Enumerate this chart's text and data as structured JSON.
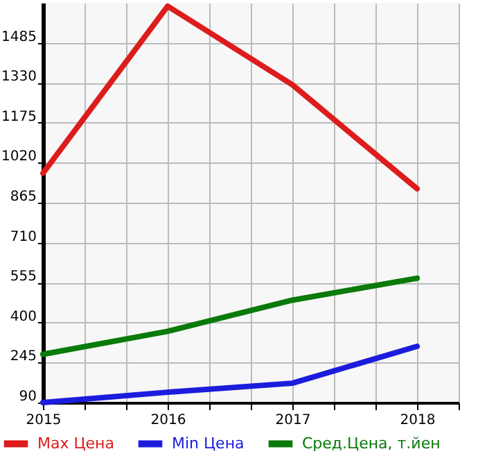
{
  "chart_data": {
    "type": "line",
    "x": [
      2015,
      2016,
      2017,
      2018
    ],
    "series": [
      {
        "name": "Max Цена",
        "color": "#dd1c1c",
        "values": [
          979,
          1627,
          1322,
          919
        ]
      },
      {
        "name": "Min Цена",
        "color": "#1c1cdd",
        "values": [
          90,
          130,
          165,
          308
        ]
      },
      {
        "name": "Сред.Цена, т.йен",
        "color": "#0a7a0a",
        "values": [
          277,
          366,
          487,
          572
        ]
      }
    ],
    "xlim": [
      2015,
      2018.333
    ],
    "xticks": [
      2015,
      {
        "value": 2015.333,
        "label": null
      },
      {
        "value": 2015.667,
        "label": null
      },
      2016,
      {
        "value": 2016.333,
        "label": null
      },
      {
        "value": 2016.667,
        "label": null
      },
      2017,
      {
        "value": 2017.333,
        "label": null
      },
      {
        "value": 2017.667,
        "label": null
      },
      2018,
      {
        "value": 2018.333,
        "label": null
      }
    ],
    "ylim": [
      90,
      1640
    ],
    "yticks": [
      90,
      245,
      400,
      555,
      710,
      865,
      1020,
      1175,
      1330,
      1485
    ],
    "grid": true,
    "legend": "bottom",
    "line_style": "solid"
  }
}
